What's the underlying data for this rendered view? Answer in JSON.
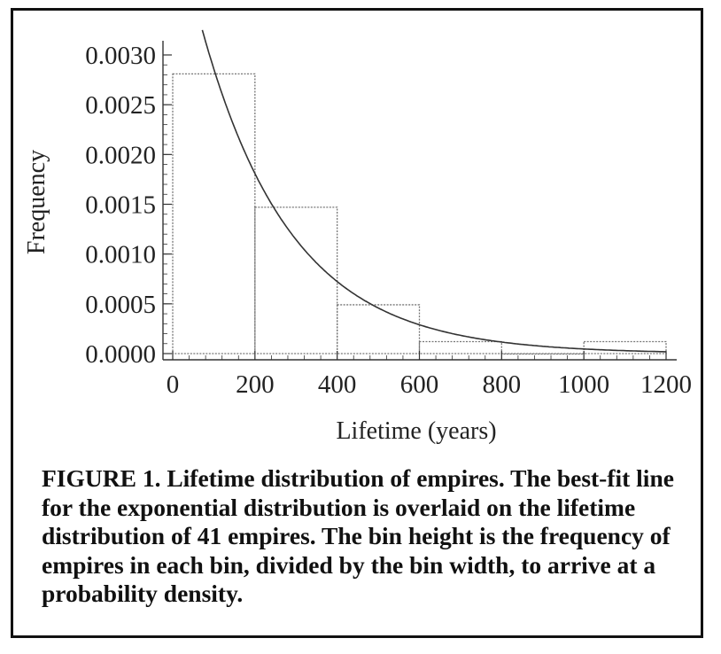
{
  "chart_data": {
    "type": "bar",
    "xlabel": "Lifetime (years)",
    "ylabel": "Frequency",
    "xlim": [
      0,
      1200
    ],
    "ylim": [
      0,
      0.0031
    ],
    "x_ticks": [
      "0",
      "200",
      "400",
      "600",
      "800",
      "1000",
      "1200"
    ],
    "y_ticks": [
      "0.0000",
      "0.0005",
      "0.0010",
      "0.0015",
      "0.0020",
      "0.0025",
      "0.0030"
    ],
    "bins": [
      {
        "start": 0,
        "end": 200,
        "value": 0.00281
      },
      {
        "start": 200,
        "end": 400,
        "value": 0.00147
      },
      {
        "start": 400,
        "end": 600,
        "value": 0.00049
      },
      {
        "start": 600,
        "end": 800,
        "value": 0.00012
      },
      {
        "start": 800,
        "end": 1000,
        "value": 0.0
      },
      {
        "start": 1000,
        "end": 1200,
        "value": 0.00012
      }
    ],
    "fit_curve": {
      "type": "exponential",
      "amplitude": 0.00452,
      "rate": 0.00458
    },
    "grid": false
  },
  "caption": "FIGURE 1. Lifetime distribution of empires. The best-fit line for the exponential distribution is overlaid on the lifetime distribution of 41 empires. The bin height is the frequency of empires in each bin, divided by the bin width, to arrive at a probability density.",
  "colors": {
    "bars": "#777777",
    "curve": "#333333",
    "axis": "#333333"
  }
}
